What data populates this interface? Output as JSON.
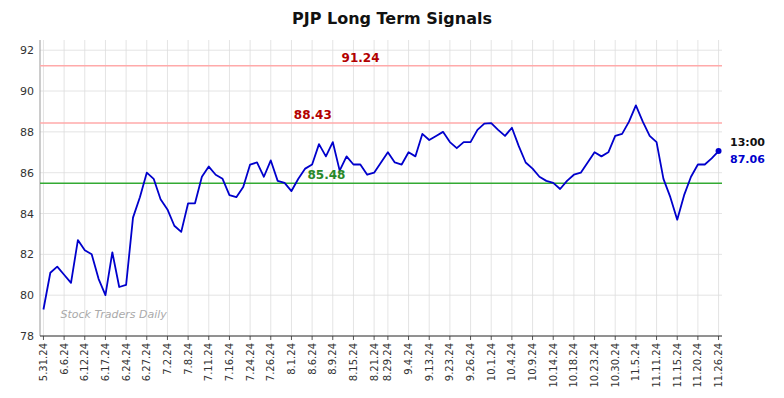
{
  "chart_data": {
    "type": "line",
    "title": "PJP Long Term Signals",
    "categories": [
      "5.31.24",
      null,
      null,
      "6.6.24",
      null,
      null,
      "6.12.24",
      null,
      null,
      "6.17.24",
      null,
      null,
      "6.24.24",
      null,
      null,
      "6.27.24",
      null,
      null,
      "7.2.24",
      null,
      null,
      "7.8.24",
      null,
      null,
      "7.11.24",
      null,
      null,
      "7.16.24",
      null,
      null,
      "7.24.24",
      null,
      null,
      "7.26.24",
      null,
      null,
      "8.1.24",
      null,
      null,
      "8.6.24",
      null,
      null,
      "8.9.24",
      null,
      null,
      "8.15.24",
      null,
      null,
      "8.21.24",
      null,
      "8.29.24",
      null,
      null,
      "9.4.24",
      null,
      null,
      "9.13.24",
      null,
      null,
      "9.23.24",
      null,
      null,
      "9.26.24",
      null,
      null,
      "10.1.24",
      null,
      null,
      "10.4.24",
      null,
      null,
      "10.9.24",
      null,
      null,
      "10.14.24",
      null,
      null,
      "10.18.24",
      null,
      null,
      "10.23.24",
      null,
      null,
      "10.30.24",
      null,
      null,
      "11.5.24",
      null,
      null,
      "11.11.24",
      null,
      null,
      "11.15.24",
      null,
      null,
      "11.20.24",
      null,
      null,
      "11.26.24"
    ],
    "values": [
      79.3,
      81.1,
      81.4,
      81.0,
      80.6,
      82.7,
      82.2,
      82.0,
      80.8,
      80.0,
      82.1,
      80.4,
      80.5,
      83.8,
      84.8,
      86.0,
      85.7,
      84.7,
      84.2,
      83.4,
      83.1,
      84.5,
      84.5,
      85.8,
      86.3,
      85.9,
      85.7,
      84.9,
      84.8,
      85.3,
      86.4,
      86.5,
      85.8,
      86.6,
      85.6,
      85.5,
      85.1,
      85.7,
      86.2,
      86.4,
      87.4,
      86.8,
      87.5,
      86.1,
      86.8,
      86.4,
      86.4,
      85.9,
      86.0,
      86.5,
      87.0,
      86.5,
      86.4,
      87.0,
      86.8,
      87.9,
      87.6,
      87.8,
      88.0,
      87.5,
      87.2,
      87.5,
      87.5,
      88.1,
      88.4,
      88.43,
      88.1,
      87.8,
      88.2,
      87.3,
      86.5,
      86.2,
      85.8,
      85.6,
      85.5,
      85.2,
      85.6,
      85.9,
      86.0,
      86.5,
      87.0,
      86.8,
      87.0,
      87.8,
      87.9,
      88.5,
      89.3,
      88.5,
      87.8,
      87.5,
      85.7,
      84.8,
      83.7,
      84.9,
      85.8,
      86.4,
      86.4,
      86.7,
      87.06
    ],
    "color": "#0000cc",
    "ylim": [
      78,
      92.5
    ],
    "yticks": [
      78,
      80,
      82,
      84,
      86,
      88,
      90,
      92
    ],
    "grid": true,
    "reference_lines": [
      {
        "value": 91.24,
        "color": "#ffaaaa"
      },
      {
        "value": 88.43,
        "color": "#ffaaaa"
      },
      {
        "value": 85.48,
        "color": "#33aa33"
      }
    ],
    "last_label": "13:00",
    "watermark": "Stock Traders Daily"
  }
}
